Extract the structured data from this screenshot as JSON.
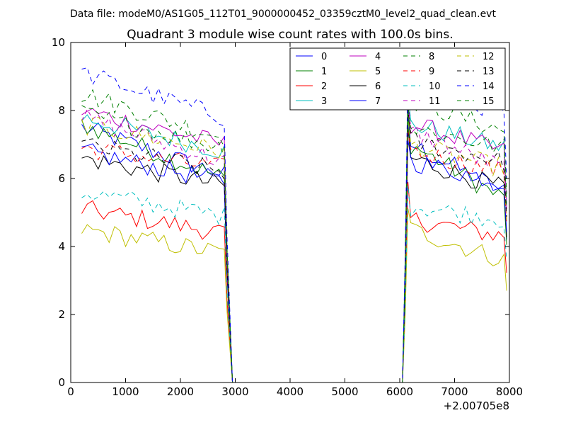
{
  "chart_data": {
    "type": "line",
    "suptitle": "Data file: modeM0/AS1G05_112T01_9000000452_03359cztM0_level2_quad_clean.evt",
    "title": "Quadrant 3 module wise count rates with 100.0s bins.",
    "xlabel": "",
    "ylabel": "",
    "xlim": [
      0,
      8000
    ],
    "ylim": [
      0,
      10
    ],
    "x_offset_label": "+2.00705e8",
    "xticks": [
      0,
      1000,
      2000,
      3000,
      4000,
      5000,
      6000,
      7000,
      8000
    ],
    "yticks": [
      0,
      2,
      4,
      6,
      8,
      10
    ],
    "xtick_labels": [
      "0",
      "1000",
      "2000",
      "3000",
      "4000",
      "5000",
      "6000",
      "7000",
      "8000"
    ],
    "ytick_labels": [
      "0",
      "2",
      "4",
      "6",
      "8",
      "10"
    ],
    "grid": false,
    "legend_position": "top-right",
    "segments": [
      {
        "x_start": 200,
        "x_end": 2800
      },
      {
        "x_start": 6200,
        "x_end": 7900
      }
    ],
    "gap": {
      "drop_end": 2950,
      "rise_start": 6050
    },
    "series": [
      {
        "name": "0",
        "color": "#0000ff",
        "dash": "solid",
        "a": [
          7.5,
          6.1
        ],
        "b": [
          7.0,
          5.6
        ]
      },
      {
        "name": "1",
        "color": "#008000",
        "dash": "solid",
        "a": [
          7.6,
          6.0
        ],
        "b": [
          7.0,
          5.4
        ]
      },
      {
        "name": "2",
        "color": "#ff0000",
        "dash": "solid",
        "a": [
          5.1,
          4.4
        ],
        "b": [
          4.8,
          4.3
        ]
      },
      {
        "name": "3",
        "color": "#00bfbf",
        "dash": "solid",
        "a": [
          7.8,
          6.8
        ],
        "b": [
          7.6,
          6.9
        ]
      },
      {
        "name": "4",
        "color": "#bf00bf",
        "dash": "solid",
        "a": [
          8.0,
          7.0
        ],
        "b": [
          7.6,
          6.8
        ]
      },
      {
        "name": "5",
        "color": "#bfbf00",
        "dash": "solid",
        "a": [
          4.5,
          3.8
        ],
        "b": [
          4.5,
          3.6
        ]
      },
      {
        "name": "6",
        "color": "#000000",
        "dash": "solid",
        "a": [
          6.6,
          5.8
        ],
        "b": [
          6.6,
          5.7
        ]
      },
      {
        "name": "7",
        "color": "#0000ff",
        "dash": "solid",
        "a": [
          6.8,
          5.9
        ],
        "b": [
          6.5,
          5.9
        ]
      },
      {
        "name": "8",
        "color": "#008000",
        "dash": "dashed",
        "a": [
          8.5,
          7.2
        ],
        "b": [
          8.3,
          7.4
        ]
      },
      {
        "name": "9",
        "color": "#ff0000",
        "dash": "dashed",
        "a": [
          6.9,
          6.3
        ],
        "b": [
          6.8,
          6.2
        ]
      },
      {
        "name": "10",
        "color": "#00bfbf",
        "dash": "dashed",
        "a": [
          5.6,
          4.9
        ],
        "b": [
          5.2,
          4.8
        ]
      },
      {
        "name": "11",
        "color": "#bf00bf",
        "dash": "dashed",
        "a": [
          7.8,
          6.5
        ],
        "b": [
          7.4,
          6.3
        ]
      },
      {
        "name": "12",
        "color": "#bfbf00",
        "dash": "dashed",
        "a": [
          7.6,
          6.8
        ],
        "b": [
          7.0,
          6.3
        ]
      },
      {
        "name": "13",
        "color": "#000000",
        "dash": "dashed",
        "a": [
          7.0,
          6.2
        ],
        "b": [
          7.1,
          6.5
        ]
      },
      {
        "name": "14",
        "color": "#0000ff",
        "dash": "dashed",
        "a": [
          9.1,
          7.8
        ],
        "b": [
          8.6,
          8.0
        ]
      },
      {
        "name": "15",
        "color": "#008000",
        "dash": "dashed",
        "a": [
          7.9,
          6.9
        ],
        "b": [
          7.5,
          6.9
        ]
      }
    ]
  }
}
